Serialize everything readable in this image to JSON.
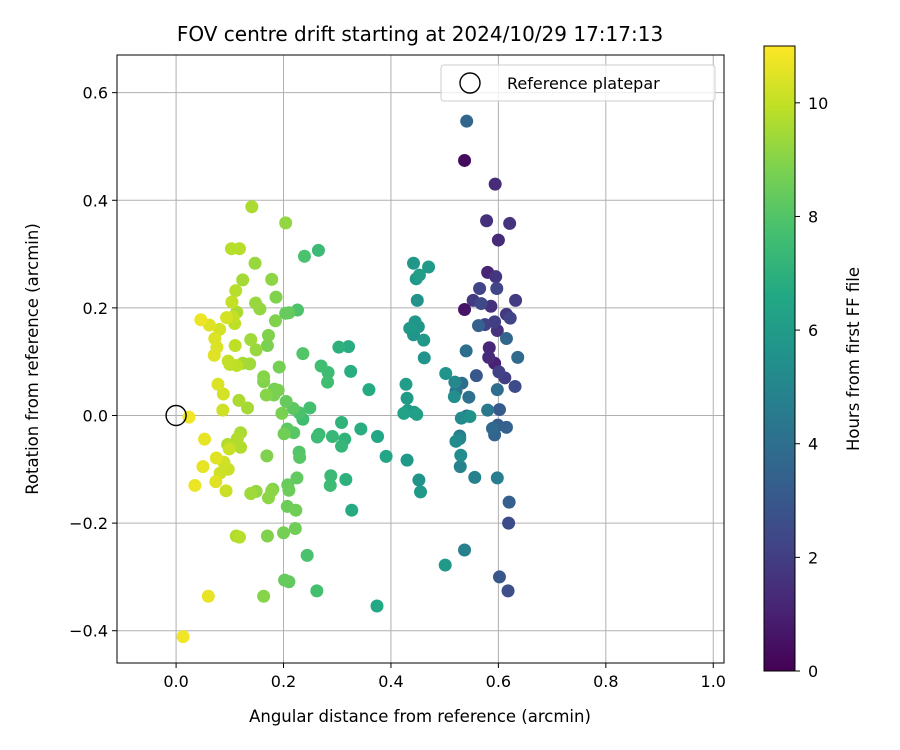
{
  "chart_data": {
    "type": "scatter",
    "title": "FOV centre drift starting at 2024/10/29 17:17:13",
    "xlabel": "Angular distance from reference (arcmin)",
    "ylabel": "Rotation from reference (arcmin)",
    "xlim": [
      -0.11,
      1.02
    ],
    "ylim": [
      -0.46,
      0.67
    ],
    "xticks": [
      0.0,
      0.2,
      0.4,
      0.6,
      0.8,
      1.0
    ],
    "xtick_labels": [
      "0.0",
      "0.2",
      "0.4",
      "0.6",
      "0.8",
      "1.0"
    ],
    "yticks": [
      -0.4,
      -0.2,
      0.0,
      0.2,
      0.4,
      0.6
    ],
    "ytick_labels": [
      "−0.4",
      "−0.2",
      "0.0",
      "0.2",
      "0.4",
      "0.6"
    ],
    "grid": true,
    "legend": {
      "position": "top-right",
      "label": "Reference platepar"
    },
    "reference_point": {
      "x": 0.0,
      "y": 0.0
    },
    "colorbar": {
      "label": "Hours from first FF file",
      "range": [
        0,
        11
      ],
      "ticks": [
        0,
        2,
        4,
        6,
        8,
        10
      ],
      "tick_labels": [
        "0",
        "2",
        "4",
        "6",
        "8",
        "10"
      ],
      "colormap": "viridis"
    },
    "points": [
      {
        "x": 0.537,
        "y": 0.474,
        "h": 0.3
      },
      {
        "x": 0.537,
        "y": 0.197,
        "h": 0.6
      },
      {
        "x": 0.593,
        "y": 0.097,
        "h": 1.0
      },
      {
        "x": 0.58,
        "y": 0.266,
        "h": 1.1
      },
      {
        "x": 0.6,
        "y": 0.326,
        "h": 1.3
      },
      {
        "x": 0.594,
        "y": 0.43,
        "h": 1.4
      },
      {
        "x": 0.578,
        "y": 0.362,
        "h": 1.5
      },
      {
        "x": 0.621,
        "y": 0.357,
        "h": 1.6
      },
      {
        "x": 0.583,
        "y": 0.126,
        "h": 1.2
      },
      {
        "x": 0.582,
        "y": 0.108,
        "h": 1.3
      },
      {
        "x": 0.586,
        "y": 0.203,
        "h": 1.5
      },
      {
        "x": 0.595,
        "y": 0.258,
        "h": 1.7
      },
      {
        "x": 0.598,
        "y": 0.158,
        "h": 1.6
      },
      {
        "x": 0.612,
        "y": 0.07,
        "h": 2.0
      },
      {
        "x": 0.601,
        "y": 0.081,
        "h": 2.1
      },
      {
        "x": 0.632,
        "y": 0.214,
        "h": 1.9
      },
      {
        "x": 0.615,
        "y": 0.188,
        "h": 1.8
      },
      {
        "x": 0.593,
        "y": 0.174,
        "h": 2.0
      },
      {
        "x": 0.565,
        "y": 0.236,
        "h": 2.2
      },
      {
        "x": 0.568,
        "y": 0.208,
        "h": 2.4
      },
      {
        "x": 0.553,
        "y": 0.214,
        "h": 1.9
      },
      {
        "x": 0.622,
        "y": 0.181,
        "h": 2.2
      },
      {
        "x": 0.575,
        "y": 0.169,
        "h": 2.1
      },
      {
        "x": 0.597,
        "y": 0.236,
        "h": 2.3
      },
      {
        "x": 0.631,
        "y": 0.054,
        "h": 2.5
      },
      {
        "x": 0.619,
        "y": -0.2,
        "h": 2.5
      },
      {
        "x": 0.618,
        "y": -0.326,
        "h": 2.6
      },
      {
        "x": 0.602,
        "y": -0.3,
        "h": 3.0
      },
      {
        "x": 0.559,
        "y": 0.074,
        "h": 3.0
      },
      {
        "x": 0.602,
        "y": 0.011,
        "h": 3.1
      },
      {
        "x": 0.599,
        "y": -0.018,
        "h": 3.2
      },
      {
        "x": 0.615,
        "y": -0.022,
        "h": 3.4
      },
      {
        "x": 0.62,
        "y": -0.161,
        "h": 3.3
      },
      {
        "x": 0.593,
        "y": -0.036,
        "h": 3.5
      },
      {
        "x": 0.541,
        "y": 0.547,
        "h": 3.6
      },
      {
        "x": 0.636,
        "y": 0.108,
        "h": 3.8
      },
      {
        "x": 0.598,
        "y": 0.048,
        "h": 3.9
      },
      {
        "x": 0.615,
        "y": 0.143,
        "h": 3.6
      },
      {
        "x": 0.589,
        "y": -0.024,
        "h": 3.7
      },
      {
        "x": 0.563,
        "y": 0.167,
        "h": 3.4
      },
      {
        "x": 0.532,
        "y": 0.06,
        "h": 3.9
      },
      {
        "x": 0.521,
        "y": 0.045,
        "h": 4.2
      },
      {
        "x": 0.545,
        "y": 0.034,
        "h": 4.1
      },
      {
        "x": 0.54,
        "y": 0.12,
        "h": 4.0
      },
      {
        "x": 0.58,
        "y": 0.01,
        "h": 4.4
      },
      {
        "x": 0.541,
        "y": -0.001,
        "h": 4.3
      },
      {
        "x": 0.528,
        "y": -0.038,
        "h": 4.5
      },
      {
        "x": 0.598,
        "y": -0.116,
        "h": 4.6
      },
      {
        "x": 0.537,
        "y": -0.25,
        "h": 4.7
      },
      {
        "x": 0.556,
        "y": -0.115,
        "h": 4.8
      },
      {
        "x": 0.529,
        "y": -0.095,
        "h": 4.9
      },
      {
        "x": 0.528,
        "y": -0.043,
        "h": 5.0
      },
      {
        "x": 0.519,
        "y": 0.062,
        "h": 5.1
      },
      {
        "x": 0.531,
        "y": -0.005,
        "h": 5.2
      },
      {
        "x": 0.53,
        "y": -0.074,
        "h": 5.3
      },
      {
        "x": 0.521,
        "y": -0.048,
        "h": 5.2
      },
      {
        "x": 0.547,
        "y": -0.002,
        "h": 5.5
      },
      {
        "x": 0.518,
        "y": 0.035,
        "h": 5.4
      },
      {
        "x": 0.501,
        "y": -0.278,
        "h": 5.9
      },
      {
        "x": 0.502,
        "y": 0.078,
        "h": 5.7
      },
      {
        "x": 0.449,
        "y": 0.214,
        "h": 5.6
      },
      {
        "x": 0.442,
        "y": 0.283,
        "h": 5.8
      },
      {
        "x": 0.447,
        "y": 0.254,
        "h": 5.9
      },
      {
        "x": 0.47,
        "y": 0.276,
        "h": 6.0
      },
      {
        "x": 0.453,
        "y": 0.261,
        "h": 6.1
      },
      {
        "x": 0.445,
        "y": 0.174,
        "h": 5.8
      },
      {
        "x": 0.435,
        "y": 0.162,
        "h": 5.9
      },
      {
        "x": 0.442,
        "y": 0.15,
        "h": 5.7
      },
      {
        "x": 0.461,
        "y": 0.14,
        "h": 5.9
      },
      {
        "x": 0.451,
        "y": 0.165,
        "h": 5.8
      },
      {
        "x": 0.462,
        "y": 0.107,
        "h": 5.7
      },
      {
        "x": 0.431,
        "y": 0.009,
        "h": 6.0
      },
      {
        "x": 0.43,
        "y": -0.083,
        "h": 5.9
      },
      {
        "x": 0.452,
        "y": -0.12,
        "h": 5.6
      },
      {
        "x": 0.455,
        "y": -0.142,
        "h": 5.9
      },
      {
        "x": 0.428,
        "y": 0.058,
        "h": 6.1
      },
      {
        "x": 0.43,
        "y": 0.032,
        "h": 6.0
      },
      {
        "x": 0.443,
        "y": 0.006,
        "h": 6.0
      },
      {
        "x": 0.448,
        "y": 0.002,
        "h": 6.2
      },
      {
        "x": 0.424,
        "y": 0.004,
        "h": 6.3
      },
      {
        "x": 0.391,
        "y": -0.076,
        "h": 6.5
      },
      {
        "x": 0.375,
        "y": -0.039,
        "h": 6.5
      },
      {
        "x": 0.374,
        "y": -0.354,
        "h": 6.6
      },
      {
        "x": 0.359,
        "y": 0.048,
        "h": 6.7
      },
      {
        "x": 0.344,
        "y": -0.025,
        "h": 6.8
      },
      {
        "x": 0.327,
        "y": -0.176,
        "h": 6.7
      },
      {
        "x": 0.325,
        "y": 0.082,
        "h": 6.9
      },
      {
        "x": 0.321,
        "y": 0.128,
        "h": 6.8
      },
      {
        "x": 0.316,
        "y": -0.119,
        "h": 7.0
      },
      {
        "x": 0.303,
        "y": 0.127,
        "h": 7.0
      },
      {
        "x": 0.308,
        "y": -0.013,
        "h": 7.1
      },
      {
        "x": 0.314,
        "y": -0.044,
        "h": 7.1
      },
      {
        "x": 0.308,
        "y": -0.057,
        "h": 7.2
      },
      {
        "x": 0.291,
        "y": -0.039,
        "h": 7.3
      },
      {
        "x": 0.288,
        "y": -0.112,
        "h": 7.4
      },
      {
        "x": 0.287,
        "y": -0.13,
        "h": 7.5
      },
      {
        "x": 0.283,
        "y": 0.08,
        "h": 7.5
      },
      {
        "x": 0.282,
        "y": 0.062,
        "h": 7.6
      },
      {
        "x": 0.265,
        "y": 0.307,
        "h": 7.4
      },
      {
        "x": 0.27,
        "y": 0.092,
        "h": 7.6
      },
      {
        "x": 0.266,
        "y": -0.035,
        "h": 7.4
      },
      {
        "x": 0.263,
        "y": -0.04,
        "h": 7.5
      },
      {
        "x": 0.262,
        "y": -0.326,
        "h": 7.7
      },
      {
        "x": 0.249,
        "y": 0.014,
        "h": 7.7
      },
      {
        "x": 0.244,
        "y": -0.26,
        "h": 7.8
      },
      {
        "x": 0.239,
        "y": 0.296,
        "h": 7.8
      },
      {
        "x": 0.229,
        "y": 0.005,
        "h": 7.8
      },
      {
        "x": 0.236,
        "y": -0.007,
        "h": 7.6
      },
      {
        "x": 0.236,
        "y": 0.115,
        "h": 8.0
      },
      {
        "x": 0.23,
        "y": -0.078,
        "h": 8.1
      },
      {
        "x": 0.229,
        "y": -0.068,
        "h": 8.0
      },
      {
        "x": 0.226,
        "y": 0.196,
        "h": 7.9
      },
      {
        "x": 0.219,
        "y": -0.032,
        "h": 8.1
      },
      {
        "x": 0.207,
        "y": -0.025,
        "h": 8.2
      },
      {
        "x": 0.21,
        "y": -0.309,
        "h": 8.3
      },
      {
        "x": 0.202,
        "y": -0.306,
        "h": 8.4
      },
      {
        "x": 0.205,
        "y": 0.026,
        "h": 8.4
      },
      {
        "x": 0.204,
        "y": 0.19,
        "h": 8.4
      },
      {
        "x": 0.21,
        "y": 0.191,
        "h": 8.3
      },
      {
        "x": 0.218,
        "y": 0.013,
        "h": 8.2
      },
      {
        "x": 0.225,
        "y": -0.116,
        "h": 8.3
      },
      {
        "x": 0.208,
        "y": -0.129,
        "h": 8.4
      },
      {
        "x": 0.21,
        "y": -0.139,
        "h": 8.5
      },
      {
        "x": 0.207,
        "y": -0.169,
        "h": 8.5
      },
      {
        "x": 0.223,
        "y": -0.176,
        "h": 8.6
      },
      {
        "x": 0.222,
        "y": -0.21,
        "h": 8.6
      },
      {
        "x": 0.201,
        "y": -0.034,
        "h": 8.6
      },
      {
        "x": 0.2,
        "y": -0.218,
        "h": 8.7
      },
      {
        "x": 0.197,
        "y": 0.004,
        "h": 8.8
      },
      {
        "x": 0.192,
        "y": 0.09,
        "h": 8.7
      },
      {
        "x": 0.182,
        "y": 0.038,
        "h": 8.8
      },
      {
        "x": 0.183,
        "y": 0.049,
        "h": 8.7
      },
      {
        "x": 0.18,
        "y": -0.137,
        "h": 8.8
      },
      {
        "x": 0.186,
        "y": 0.22,
        "h": 8.9
      },
      {
        "x": 0.185,
        "y": 0.176,
        "h": 8.9
      },
      {
        "x": 0.19,
        "y": 0.047,
        "h": 8.8
      },
      {
        "x": 0.172,
        "y": 0.149,
        "h": 8.9
      },
      {
        "x": 0.17,
        "y": 0.13,
        "h": 8.8
      },
      {
        "x": 0.169,
        "y": -0.075,
        "h": 8.9
      },
      {
        "x": 0.17,
        "y": -0.224,
        "h": 8.9
      },
      {
        "x": 0.163,
        "y": -0.336,
        "h": 9.0
      },
      {
        "x": 0.163,
        "y": 0.072,
        "h": 9.0
      },
      {
        "x": 0.163,
        "y": 0.063,
        "h": 8.9
      },
      {
        "x": 0.168,
        "y": 0.038,
        "h": 9.0
      },
      {
        "x": 0.178,
        "y": 0.253,
        "h": 9.1
      },
      {
        "x": 0.178,
        "y": -0.14,
        "h": 9.1
      },
      {
        "x": 0.172,
        "y": -0.153,
        "h": 9.1
      },
      {
        "x": 0.156,
        "y": 0.198,
        "h": 9.2
      },
      {
        "x": 0.149,
        "y": -0.141,
        "h": 9.2
      },
      {
        "x": 0.148,
        "y": 0.209,
        "h": 9.3
      },
      {
        "x": 0.149,
        "y": 0.122,
        "h": 9.3
      },
      {
        "x": 0.147,
        "y": 0.283,
        "h": 9.3
      },
      {
        "x": 0.139,
        "y": 0.141,
        "h": 9.4
      },
      {
        "x": 0.139,
        "y": -0.145,
        "h": 9.4
      },
      {
        "x": 0.137,
        "y": 0.096,
        "h": 9.4
      },
      {
        "x": 0.133,
        "y": 0.014,
        "h": 9.5
      },
      {
        "x": 0.124,
        "y": 0.097,
        "h": 9.5
      },
      {
        "x": 0.124,
        "y": 0.252,
        "h": 9.5
      },
      {
        "x": 0.117,
        "y": 0.028,
        "h": 9.6
      },
      {
        "x": 0.12,
        "y": -0.032,
        "h": 9.6
      },
      {
        "x": 0.113,
        "y": 0.192,
        "h": 9.6
      },
      {
        "x": 0.114,
        "y": -0.043,
        "h": 9.7
      },
      {
        "x": 0.12,
        "y": -0.059,
        "h": 9.7
      },
      {
        "x": 0.112,
        "y": -0.224,
        "h": 9.7
      },
      {
        "x": 0.118,
        "y": -0.226,
        "h": 9.8
      },
      {
        "x": 0.096,
        "y": -0.054,
        "h": 9.7
      },
      {
        "x": 0.103,
        "y": 0.31,
        "h": 9.8
      },
      {
        "x": 0.118,
        "y": 0.31,
        "h": 9.8
      },
      {
        "x": 0.111,
        "y": 0.232,
        "h": 9.8
      },
      {
        "x": 0.109,
        "y": 0.171,
        "h": 9.9
      },
      {
        "x": 0.11,
        "y": 0.13,
        "h": 9.9
      },
      {
        "x": 0.113,
        "y": 0.093,
        "h": 9.9
      },
      {
        "x": 0.106,
        "y": 0.183,
        "h": 10.0
      },
      {
        "x": 0.104,
        "y": 0.211,
        "h": 10.0
      },
      {
        "x": 0.097,
        "y": 0.101,
        "h": 10.0
      },
      {
        "x": 0.099,
        "y": -0.062,
        "h": 10.1
      },
      {
        "x": 0.097,
        "y": -0.1,
        "h": 10.1
      },
      {
        "x": 0.093,
        "y": -0.14,
        "h": 10.1
      },
      {
        "x": 0.089,
        "y": -0.087,
        "h": 10.2
      },
      {
        "x": 0.082,
        "y": -0.107,
        "h": 10.2
      },
      {
        "x": 0.087,
        "y": 0.01,
        "h": 10.2
      },
      {
        "x": 0.088,
        "y": 0.04,
        "h": 10.3
      },
      {
        "x": 0.094,
        "y": 0.182,
        "h": 10.3
      },
      {
        "x": 0.081,
        "y": 0.16,
        "h": 10.3
      },
      {
        "x": 0.078,
        "y": 0.058,
        "h": 10.4
      },
      {
        "x": 0.072,
        "y": 0.143,
        "h": 10.4
      },
      {
        "x": 0.076,
        "y": 0.127,
        "h": 10.4
      },
      {
        "x": 0.074,
        "y": -0.123,
        "h": 10.5
      },
      {
        "x": 0.075,
        "y": -0.079,
        "h": 10.5
      },
      {
        "x": 0.071,
        "y": 0.112,
        "h": 10.5
      },
      {
        "x": 0.062,
        "y": 0.168,
        "h": 10.5
      },
      {
        "x": 0.06,
        "y": -0.336,
        "h": 10.6
      },
      {
        "x": 0.053,
        "y": -0.044,
        "h": 10.6
      },
      {
        "x": 0.05,
        "y": -0.095,
        "h": 10.6
      },
      {
        "x": 0.046,
        "y": 0.178,
        "h": 10.7
      },
      {
        "x": 0.035,
        "y": -0.13,
        "h": 10.7
      },
      {
        "x": 0.013,
        "y": -0.411,
        "h": 10.8
      },
      {
        "x": 0.024,
        "y": -0.003,
        "h": 10.8
      },
      {
        "x": 0.141,
        "y": 0.388,
        "h": 9.6
      },
      {
        "x": 0.204,
        "y": 0.358,
        "h": 9.2
      },
      {
        "x": 0.1,
        "y": 0.095,
        "h": 9.9
      }
    ]
  }
}
